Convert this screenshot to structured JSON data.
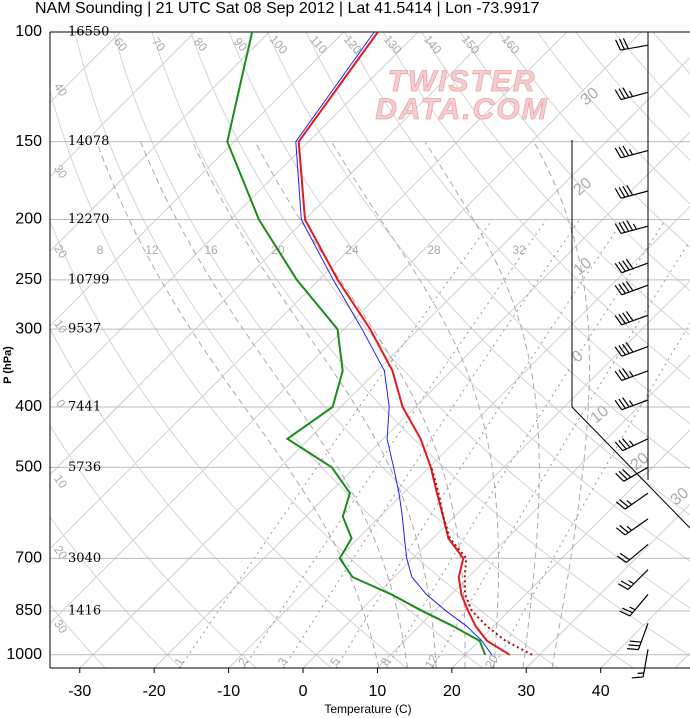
{
  "chart_data": {
    "type": "skewt",
    "title": "NAM Sounding | 21 UTC Sat 08 Sep 2012 | Lat 41.5414 | Lon -73.9917",
    "x_label": "Temperature (C)",
    "y_label": "P (hPa)",
    "xlim": [
      -34,
      52
    ],
    "xticks": [
      -30,
      -20,
      -10,
      0,
      10,
      20,
      30,
      40
    ],
    "ylim": [
      1050,
      100
    ],
    "yticks": [
      100,
      150,
      200,
      250,
      300,
      400,
      500,
      700,
      850,
      1000
    ],
    "log_y": true,
    "grid": true,
    "heights": [
      16550,
      14078,
      12270,
      10799,
      9537,
      7441,
      5736,
      3040,
      1416,
      null
    ],
    "pressure": [
      1000,
      950,
      900,
      850,
      800,
      750,
      700,
      650,
      600,
      550,
      500,
      450,
      400,
      350,
      300,
      250,
      200,
      150,
      100
    ],
    "series": [
      {
        "color": "#e31a1c",
        "line_style": "solid",
        "values": [
          26.0,
          21.1,
          17.6,
          14.5,
          11.4,
          8.7,
          6.8,
          2.1,
          -1.5,
          -5.5,
          -9.8,
          -15.0,
          -21.7,
          -27.9,
          -36.5,
          -47.5,
          -60.0,
          -71.3,
          -75.4
        ]
      },
      {
        "color": "#1a8c1a",
        "line_style": "solid",
        "values": [
          22.7,
          20.1,
          14.6,
          8.3,
          2.0,
          -5.6,
          -9.8,
          -10.9,
          -15.0,
          -17.2,
          -23.1,
          -32.9,
          -31.1,
          -34.6,
          -40.9,
          -53.0,
          -66.2,
          -80.9,
          -92.3
        ]
      },
      {
        "color": "#2323e6",
        "line_style": "solid",
        "values": [
          23.6,
          20.4,
          16.4,
          11.5,
          6.7,
          2.4,
          -0.8,
          -3.8,
          -7.0,
          -10.6,
          -14.8,
          -19.5,
          -23.5,
          -29.0,
          -37.6,
          -48.1,
          -60.5,
          -71.7,
          -75.9
        ]
      },
      {
        "color": "#a31010",
        "line_style": "dotted",
        "values": [
          29.0,
          23.6,
          19.1,
          15.0,
          11.9,
          9.5,
          7.2,
          2.3,
          -1.5,
          -5.3,
          -9.7,
          null,
          null,
          null,
          null,
          null,
          null,
          null,
          null
        ]
      }
    ],
    "wind": {
      "pressure": [
        105,
        125,
        155,
        180,
        205,
        235,
        255,
        285,
        320,
        350,
        390,
        450,
        500,
        550,
        605,
        665,
        730,
        800,
        890,
        980
      ],
      "direction": [
        260,
        255,
        255,
        255,
        255,
        250,
        250,
        250,
        250,
        250,
        250,
        245,
        240,
        235,
        235,
        230,
        225,
        220,
        200,
        190
      ],
      "speed": [
        30,
        35,
        35,
        40,
        45,
        40,
        40,
        40,
        40,
        35,
        35,
        35,
        30,
        25,
        25,
        20,
        25,
        25,
        30,
        15
      ]
    },
    "dry_adiabat_labels": [
      60,
      70,
      80,
      90,
      100,
      110,
      120,
      130,
      140,
      150,
      160
    ],
    "moist_adiabat_labels": [
      8,
      12,
      16,
      20,
      24,
      28,
      32
    ],
    "mixing_ratio_labels": [
      1,
      2,
      3,
      5,
      8,
      12,
      20
    ],
    "left_labels": [
      40,
      30,
      20,
      10,
      0,
      10,
      20,
      30
    ],
    "right_labels": [
      30,
      20,
      10,
      0,
      10,
      20,
      30
    ],
    "watermark": [
      "TWISTER",
      "DATA.COM"
    ]
  }
}
